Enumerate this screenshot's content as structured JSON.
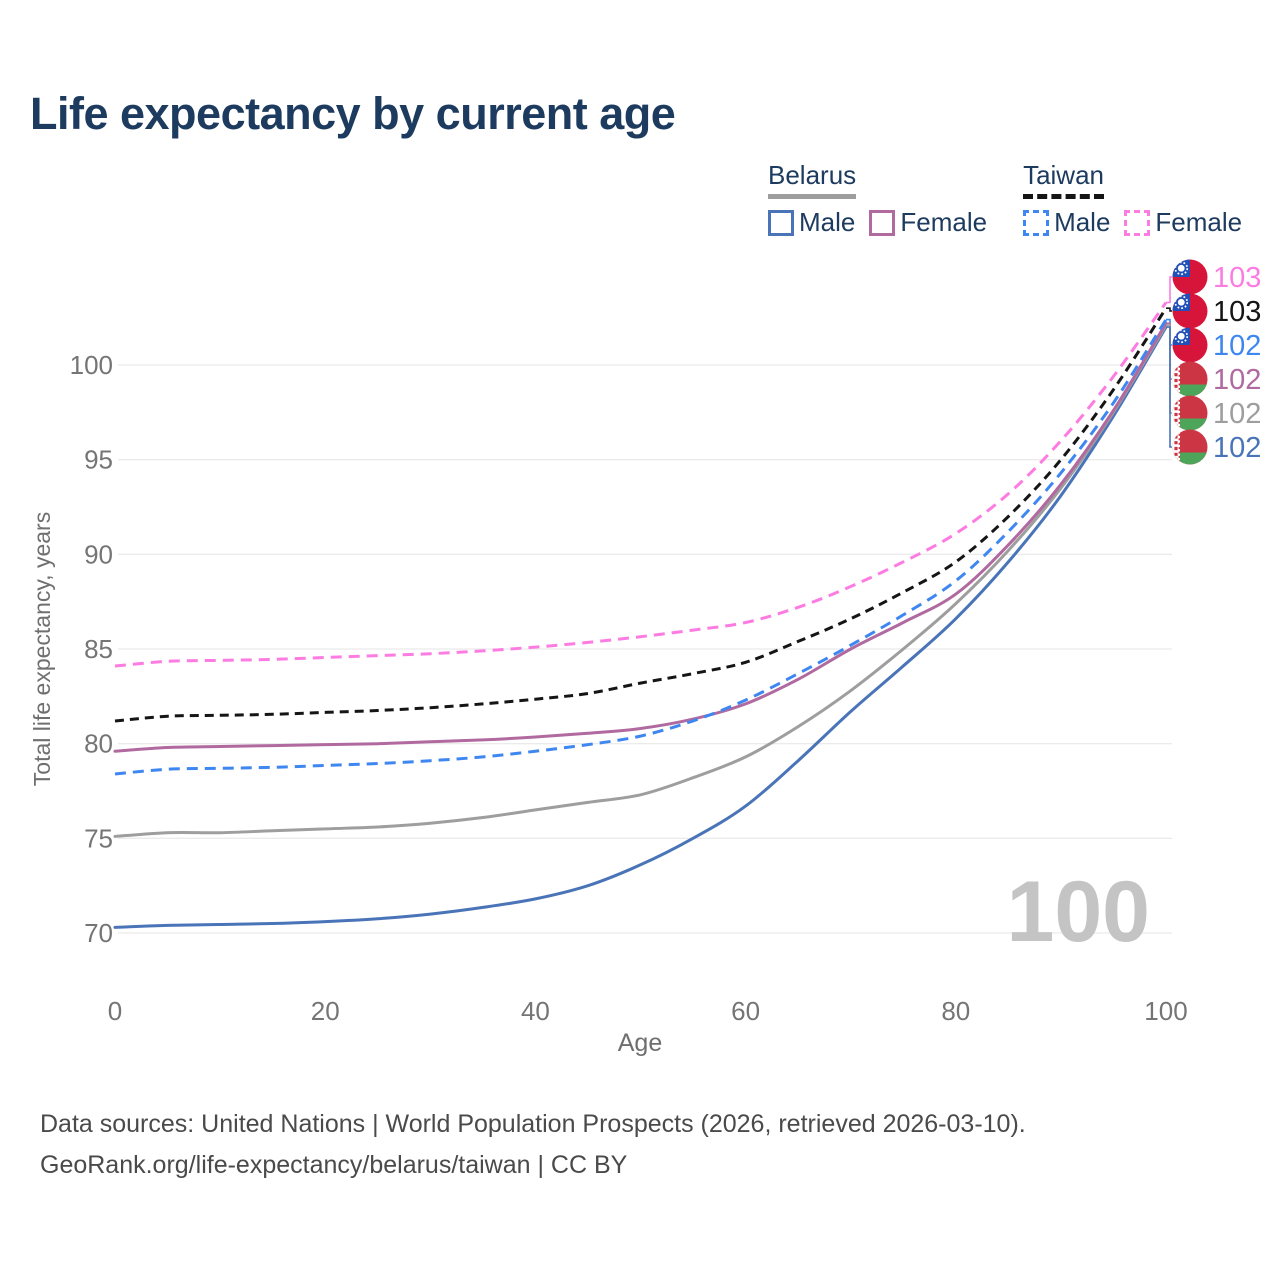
{
  "title": "Life expectancy by current age",
  "legend": {
    "groups": [
      {
        "name": "Belarus",
        "line_style": "solid",
        "line_color": "#9e9e9e",
        "items": [
          {
            "label": "Male",
            "color": "#4a74b8",
            "dashed": false
          },
          {
            "label": "Female",
            "color": "#b06aa0",
            "dashed": false
          }
        ]
      },
      {
        "name": "Taiwan",
        "line_style": "dashed",
        "line_color": "#151515",
        "items": [
          {
            "label": "Male",
            "color": "#3f87f0",
            "dashed": true
          },
          {
            "label": "Female",
            "color": "#fc7ce2",
            "dashed": true
          }
        ]
      }
    ]
  },
  "watermark": "100",
  "footer": {
    "line1": "Data sources: United Nations | World Population Prospects (2026, retrieved 2026-03-10).",
    "line2": "GeoRank.org/life-expectancy/belarus/taiwan | CC BY"
  },
  "chart_data": {
    "type": "line",
    "title": "Life expectancy by current age",
    "xlabel": "Age",
    "ylabel": "Total life expectancy, years",
    "xlim": [
      0,
      100
    ],
    "ylim": [
      68,
      104
    ],
    "xticks": [
      0,
      20,
      40,
      60,
      80,
      100
    ],
    "yticks": [
      70,
      75,
      80,
      85,
      90,
      95,
      100
    ],
    "grid": "horizontal",
    "legend_position": "top-right",
    "x": [
      0,
      5,
      10,
      15,
      20,
      25,
      30,
      35,
      40,
      45,
      50,
      55,
      60,
      65,
      70,
      75,
      80,
      85,
      90,
      95,
      100
    ],
    "series": [
      {
        "name": "Taiwan Female",
        "country": "Taiwan",
        "sex": "female",
        "color": "#fc7ce2",
        "dashed": true,
        "flag": "taiwan",
        "end_label": "103",
        "values": [
          84.1,
          84.35,
          84.4,
          84.45,
          84.55,
          84.65,
          84.75,
          84.9,
          85.1,
          85.35,
          85.65,
          86.0,
          86.4,
          87.2,
          88.3,
          89.6,
          91.1,
          93.2,
          96.0,
          99.4,
          103.3
        ]
      },
      {
        "name": "Taiwan Total",
        "country": "Taiwan",
        "sex": "total",
        "color": "#151515",
        "dashed": true,
        "flag": "taiwan",
        "end_label": "103",
        "values": [
          81.2,
          81.45,
          81.5,
          81.55,
          81.65,
          81.75,
          81.9,
          82.1,
          82.35,
          82.65,
          83.2,
          83.7,
          84.3,
          85.4,
          86.6,
          88.0,
          89.6,
          92.0,
          95.0,
          98.7,
          103.0
        ]
      },
      {
        "name": "Taiwan Male",
        "country": "Taiwan",
        "sex": "male",
        "color": "#3f87f0",
        "dashed": true,
        "flag": "taiwan",
        "end_label": "102",
        "values": [
          78.4,
          78.65,
          78.7,
          78.75,
          78.85,
          78.95,
          79.1,
          79.3,
          79.6,
          79.95,
          80.4,
          81.2,
          82.3,
          83.7,
          85.2,
          86.8,
          88.6,
          91.2,
          94.3,
          98.0,
          102.4
        ]
      },
      {
        "name": "Belarus Female",
        "country": "Belarus",
        "sex": "female",
        "color": "#b06aa0",
        "dashed": false,
        "flag": "belarus",
        "end_label": "102",
        "values": [
          79.6,
          79.8,
          79.85,
          79.9,
          79.95,
          80.0,
          80.1,
          80.2,
          80.35,
          80.55,
          80.8,
          81.3,
          82.1,
          83.4,
          85.0,
          86.4,
          87.9,
          90.5,
          93.7,
          97.6,
          102.2
        ]
      },
      {
        "name": "Belarus Total",
        "country": "Belarus",
        "sex": "total",
        "color": "#9e9e9e",
        "dashed": false,
        "flag": "belarus",
        "end_label": "102",
        "values": [
          75.1,
          75.3,
          75.3,
          75.4,
          75.5,
          75.6,
          75.8,
          76.1,
          76.5,
          76.9,
          77.3,
          78.2,
          79.3,
          80.9,
          82.8,
          85.0,
          87.4,
          90.2,
          93.5,
          97.5,
          102.1
        ]
      },
      {
        "name": "Belarus Male",
        "country": "Belarus",
        "sex": "male",
        "color": "#4a74b8",
        "dashed": false,
        "flag": "belarus",
        "end_label": "102",
        "values": [
          70.3,
          70.4,
          70.45,
          70.5,
          70.6,
          70.75,
          71.0,
          71.35,
          71.8,
          72.5,
          73.6,
          75.0,
          76.7,
          79.1,
          81.7,
          84.1,
          86.6,
          89.6,
          93.1,
          97.3,
          102.0
        ]
      }
    ]
  }
}
